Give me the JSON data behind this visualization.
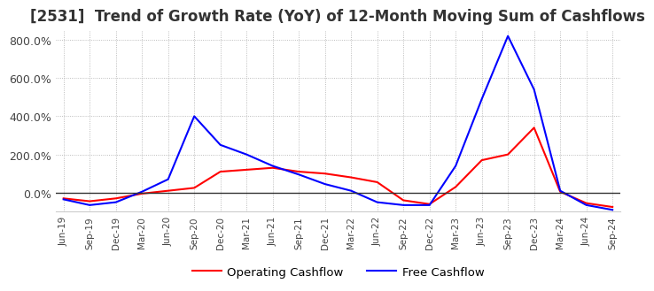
{
  "title": "[2531]  Trend of Growth Rate (YoY) of 12-Month Moving Sum of Cashflows",
  "title_fontsize": 12,
  "ylim": [
    -100,
    850
  ],
  "yticks": [
    0,
    200,
    400,
    600,
    800
  ],
  "legend_labels": [
    "Operating Cashflow",
    "Free Cashflow"
  ],
  "x_labels": [
    "Jun-19",
    "Sep-19",
    "Dec-19",
    "Mar-20",
    "Jun-20",
    "Sep-20",
    "Dec-20",
    "Mar-21",
    "Jun-21",
    "Sep-21",
    "Dec-21",
    "Mar-22",
    "Jun-22",
    "Sep-22",
    "Dec-22",
    "Mar-23",
    "Jun-23",
    "Sep-23",
    "Dec-23",
    "Mar-24",
    "Jun-24",
    "Sep-24"
  ],
  "operating_cashflow": [
    -30,
    -45,
    -30,
    -5,
    10,
    25,
    110,
    120,
    130,
    110,
    100,
    80,
    55,
    -40,
    -60,
    30,
    170,
    200,
    340,
    5,
    -55,
    -75
  ],
  "free_cashflow": [
    -35,
    -65,
    -50,
    5,
    70,
    400,
    250,
    200,
    140,
    95,
    45,
    10,
    -50,
    -65,
    -65,
    140,
    490,
    820,
    540,
    10,
    -65,
    -90
  ],
  "operating_color": "#ff0000",
  "free_color": "#0000ff",
  "background_color": "#ffffff",
  "grid_color": "#aaaaaa",
  "zero_line_color": "#333333"
}
